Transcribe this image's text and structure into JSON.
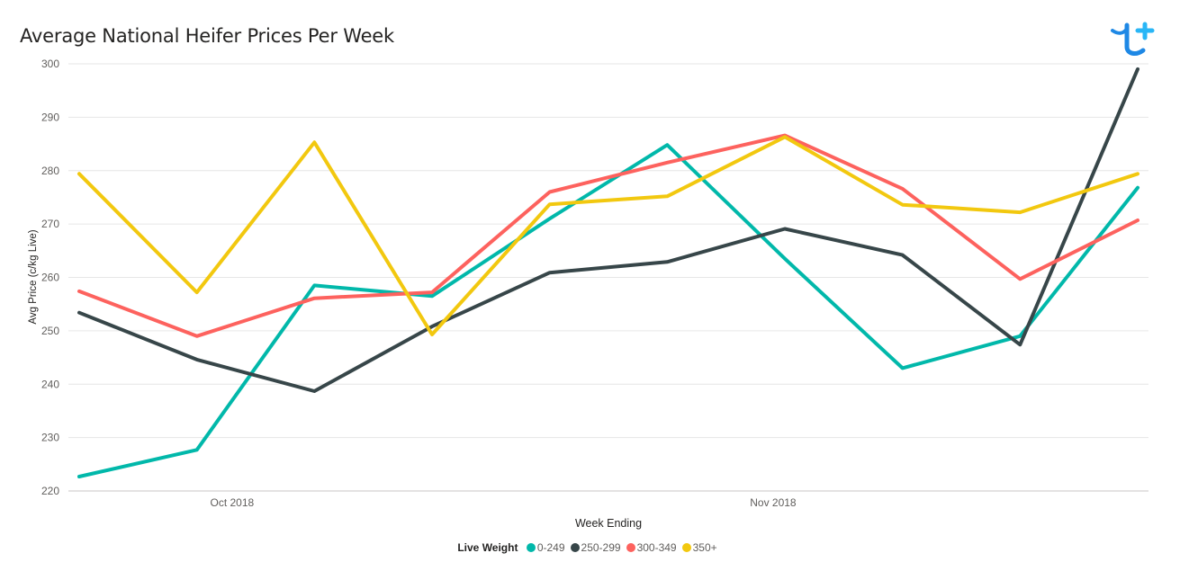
{
  "chart_data": {
    "type": "line",
    "title": "Average National Heifer Prices Per Week",
    "xlabel": "Week Ending",
    "ylabel": "Avg Price (c/kg Live)",
    "ylim": [
      220,
      300
    ],
    "yticks": [
      220,
      230,
      240,
      250,
      260,
      270,
      280,
      290,
      300
    ],
    "x_tick_labels": [
      {
        "label": "Oct 2018",
        "x": 2.3
      },
      {
        "label": "Nov 2018",
        "x": 6.9
      }
    ],
    "x": [
      1,
      2,
      3,
      4,
      5,
      6,
      7,
      8,
      9,
      10
    ],
    "grid": true,
    "legend": {
      "title": "Live Weight",
      "placement": "bottom-center"
    },
    "series": [
      {
        "name": "0-249",
        "color": "#01B8AA",
        "values": [
          222.7,
          227.7,
          258.5,
          256.5,
          271.0,
          284.8,
          263.5,
          243.0,
          249.0,
          276.8
        ]
      },
      {
        "name": "250-299",
        "color": "#374649",
        "values": [
          253.4,
          244.6,
          238.7,
          250.8,
          260.9,
          262.9,
          269.1,
          264.2,
          247.4,
          299.0
        ]
      },
      {
        "name": "300-349",
        "color": "#FD625E",
        "values": [
          257.4,
          249.0,
          256.1,
          257.2,
          276.0,
          281.5,
          286.6,
          276.6,
          259.7,
          270.7
        ]
      },
      {
        "name": "350+",
        "color": "#F2C80F",
        "values": [
          279.4,
          257.2,
          285.3,
          249.3,
          273.7,
          275.2,
          286.3,
          273.6,
          272.2,
          279.4
        ]
      }
    ]
  }
}
